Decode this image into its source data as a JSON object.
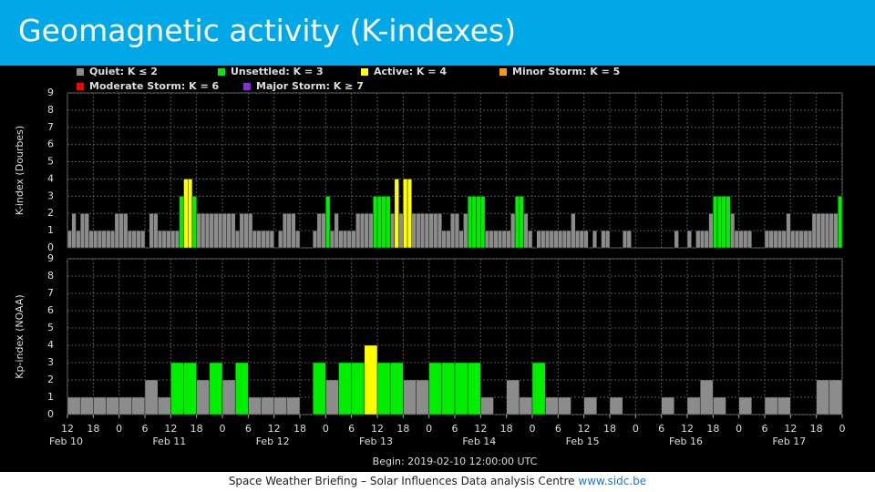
{
  "slide": {
    "title": "Geomagnetic activity (K-indexes)",
    "footer": "Space Weather Briefing – Solar Influences Data analysis Centre",
    "footer_link": "www.sidc.be"
  },
  "legend": [
    {
      "label": "Quiet: K ≤ 2",
      "color": "#8c8c8c",
      "min": 0
    },
    {
      "label": "Unsettled: K = 3",
      "color": "#00ee00",
      "min": 3
    },
    {
      "label": "Active: K = 4",
      "color": "#ffff00",
      "min": 4
    },
    {
      "label": "Minor Storm: K = 5",
      "color": "#ff9900",
      "min": 5
    },
    {
      "label": "Moderate Storm: K = 6",
      "color": "#ff0000",
      "min": 6
    },
    {
      "label": "Major Storm: K ≥ 7",
      "color": "#8a2be2",
      "min": 7
    }
  ],
  "xlabel": "Begin: 2019-02-10 12:00:00 UTC",
  "chart_data": [
    {
      "type": "bar",
      "ylabel": "K-index (Dourbes)",
      "ylim": [
        0,
        9
      ],
      "yticks": [
        0,
        1,
        2,
        3,
        4,
        5,
        6,
        7,
        8,
        9
      ],
      "xlim": [
        0,
        180
      ],
      "grid": true,
      "values": [
        1,
        2,
        1,
        2,
        2,
        1,
        1,
        1,
        1,
        1,
        1,
        2,
        2,
        2,
        1,
        1,
        1,
        1,
        0,
        2,
        2,
        1,
        1,
        1,
        1,
        1,
        3,
        4,
        4,
        3,
        2,
        2,
        2,
        2,
        2,
        2,
        2,
        2,
        2,
        1,
        2,
        2,
        2,
        1,
        1,
        1,
        1,
        1,
        0,
        1,
        2,
        2,
        2,
        1,
        0,
        0,
        0,
        1,
        2,
        2,
        3,
        1,
        2,
        1,
        1,
        1,
        1,
        2,
        2,
        2,
        2,
        3,
        3,
        3,
        3,
        2,
        4,
        2,
        4,
        4,
        2,
        2,
        2,
        2,
        2,
        2,
        2,
        1,
        1,
        2,
        2,
        1,
        2,
        3,
        3,
        3,
        3,
        1,
        1,
        1,
        1,
        1,
        1,
        2,
        3,
        3,
        2,
        1,
        0,
        1,
        1,
        1,
        1,
        1,
        1,
        1,
        1,
        2,
        1,
        1,
        1,
        0,
        1,
        0,
        1,
        1,
        0,
        0,
        0,
        1,
        1,
        0,
        0,
        0,
        0,
        0,
        0,
        0,
        0,
        0,
        0,
        1,
        0,
        0,
        1,
        0,
        1,
        1,
        1,
        2,
        3,
        3,
        3,
        3,
        2,
        1,
        1,
        1,
        1,
        0,
        0,
        0,
        1,
        1,
        1,
        1,
        1,
        2,
        1,
        1,
        1,
        1,
        1,
        2,
        2,
        2,
        2,
        2,
        2,
        3
      ]
    },
    {
      "type": "bar",
      "ylabel": "Kp-index (NOAA)",
      "ylim": [
        0,
        9
      ],
      "yticks": [
        0,
        1,
        2,
        3,
        4,
        5,
        6,
        7,
        8,
        9
      ],
      "xlim": [
        0,
        180
      ],
      "grid": true,
      "values": [
        1,
        1,
        1,
        1,
        1,
        1,
        2,
        1,
        3,
        3,
        2,
        3,
        2,
        3,
        1,
        1,
        1,
        1,
        0,
        3,
        2,
        3,
        3,
        4,
        3,
        3,
        2,
        2,
        3,
        3,
        3,
        3,
        1,
        0,
        2,
        1,
        3,
        1,
        1,
        0,
        1,
        0,
        1,
        0,
        0,
        0,
        1,
        0,
        1,
        2,
        1,
        0,
        1,
        0,
        1,
        1,
        0,
        0,
        2,
        2
      ],
      "xticks": [
        {
          "value": 0,
          "label": "12"
        },
        {
          "value": 6,
          "label": "18"
        },
        {
          "value": 12,
          "label": "0"
        },
        {
          "value": 18,
          "label": "6"
        },
        {
          "value": 24,
          "label": "12"
        },
        {
          "value": 30,
          "label": "18"
        },
        {
          "value": 36,
          "label": "0"
        },
        {
          "value": 42,
          "label": "6"
        },
        {
          "value": 48,
          "label": "12"
        },
        {
          "value": 54,
          "label": "18"
        },
        {
          "value": 60,
          "label": "0"
        },
        {
          "value": 66,
          "label": "6"
        },
        {
          "value": 72,
          "label": "12"
        },
        {
          "value": 78,
          "label": "18"
        },
        {
          "value": 84,
          "label": "0"
        },
        {
          "value": 90,
          "label": "6"
        },
        {
          "value": 96,
          "label": "12"
        },
        {
          "value": 102,
          "label": "18"
        },
        {
          "value": 108,
          "label": "0"
        },
        {
          "value": 114,
          "label": "6"
        },
        {
          "value": 120,
          "label": "12"
        },
        {
          "value": 126,
          "label": "18"
        },
        {
          "value": 132,
          "label": "0"
        },
        {
          "value": 138,
          "label": "6"
        },
        {
          "value": 144,
          "label": "12"
        },
        {
          "value": 150,
          "label": "18"
        },
        {
          "value": 156,
          "label": "0"
        },
        {
          "value": 162,
          "label": "6"
        },
        {
          "value": 168,
          "label": "12"
        },
        {
          "value": 174,
          "label": "18"
        },
        {
          "value": 180,
          "label": "0"
        }
      ],
      "date_labels": [
        {
          "value": 0,
          "label": "Feb 10"
        },
        {
          "value": 24,
          "label": "Feb 11"
        },
        {
          "value": 48,
          "label": "Feb 12"
        },
        {
          "value": 72,
          "label": "Feb 13"
        },
        {
          "value": 96,
          "label": "Feb 14"
        },
        {
          "value": 120,
          "label": "Feb 15"
        },
        {
          "value": 144,
          "label": "Feb 16"
        },
        {
          "value": 168,
          "label": "Feb 17"
        }
      ]
    }
  ]
}
